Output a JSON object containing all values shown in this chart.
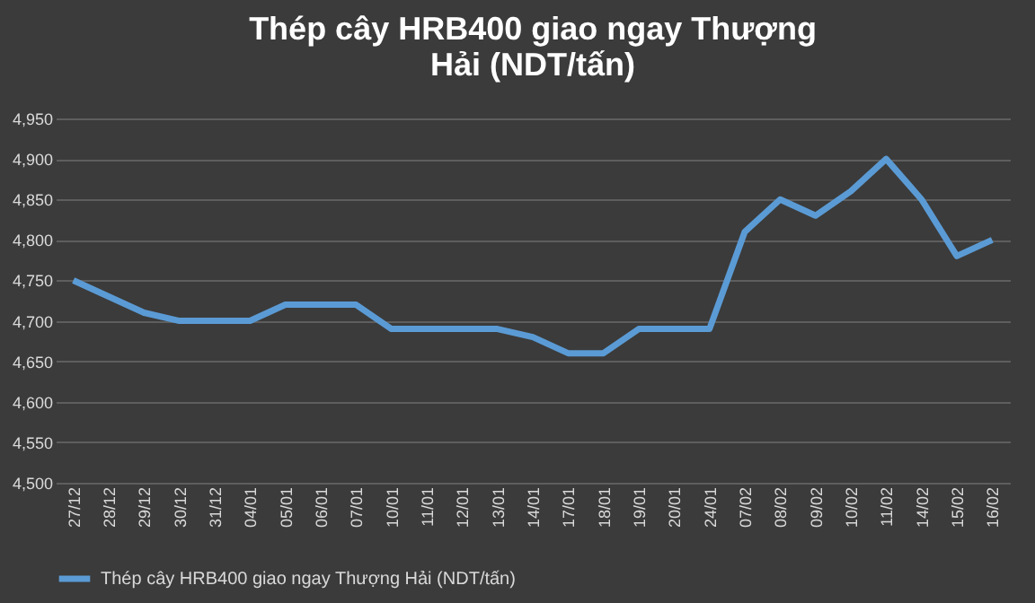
{
  "chart_data": {
    "type": "line",
    "title": "Thép cây HRB400 giao ngay Thượng Hải (NDT/tấn)",
    "categories": [
      "27/12",
      "28/12",
      "29/12",
      "30/12",
      "31/12",
      "04/01",
      "05/01",
      "06/01",
      "07/01",
      "10/01",
      "11/01",
      "12/01",
      "13/01",
      "14/01",
      "17/01",
      "18/01",
      "19/01",
      "20/01",
      "24/01",
      "07/02",
      "08/02",
      "09/02",
      "10/02",
      "11/02",
      "14/02",
      "15/02",
      "16/02"
    ],
    "series": [
      {
        "name": "Thép cây HRB400 giao ngay Thượng Hải (NDT/tấn)",
        "color": "#5b9bd5",
        "values": [
          4750,
          4730,
          4710,
          4700,
          4700,
          4700,
          4720,
          4720,
          4720,
          4690,
          4690,
          4690,
          4690,
          4680,
          4660,
          4660,
          4690,
          4690,
          4690,
          4810,
          4850,
          4830,
          4860,
          4900,
          4850,
          4780,
          4800
        ]
      }
    ],
    "ylim": [
      4500,
      4950
    ],
    "yticks": [
      {
        "value": 4500,
        "label": "4,500"
      },
      {
        "value": 4550,
        "label": "4,550"
      },
      {
        "value": 4600,
        "label": "4,600"
      },
      {
        "value": 4650,
        "label": "4,650"
      },
      {
        "value": 4700,
        "label": "4,700"
      },
      {
        "value": 4750,
        "label": "4,750"
      },
      {
        "value": 4800,
        "label": "4,800"
      },
      {
        "value": 4850,
        "label": "4,850"
      },
      {
        "value": 4900,
        "label": "4,900"
      },
      {
        "value": 4950,
        "label": "4,950"
      }
    ],
    "grid": "y",
    "legend": "bottom",
    "marker": "none",
    "line_style": "solid"
  }
}
